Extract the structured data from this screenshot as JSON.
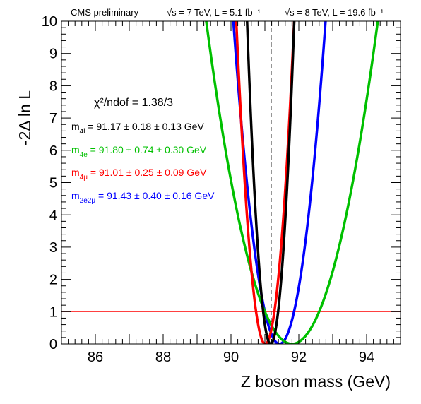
{
  "header": {
    "left": "CMS preliminary",
    "run1": "√s = 7 TeV, L = 5.1 fb⁻¹",
    "run2": "√s = 8 TeV, L = 19.6 fb⁻¹"
  },
  "chi2_label": "χ²/ndof = 1.38/3",
  "legend": [
    {
      "key": "4l",
      "label": "m4l = 91.17 ± 0.18 ± 0.13 GeV",
      "sym": "m",
      "sub": "4l",
      "rest": " = 91.17 ± 0.18 ± 0.13 GeV",
      "color": "#000000"
    },
    {
      "key": "4e",
      "label": "m4e = 91.80 ± 0.74 ± 0.30 GeV",
      "sym": "m",
      "sub": "4e",
      "rest": " = 91.80 ± 0.74 ± 0.30 GeV",
      "color": "#00c000"
    },
    {
      "key": "4mu",
      "label": "m4μ = 91.01 ± 0.25 ± 0.09 GeV",
      "sym": "m",
      "sub": "4μ",
      "rest": " = 91.01 ± 0.25 ± 0.09 GeV",
      "color": "#ff0000"
    },
    {
      "key": "2e2mu",
      "label": "m2e2μ = 91.43 ± 0.40 ± 0.16 GeV",
      "sym": "m",
      "sub": "2e2μ",
      "rest": " = 91.43 ± 0.40 ± 0.16 GeV",
      "color": "#0000ff"
    }
  ],
  "chart_data": {
    "type": "line",
    "xlabel": "Z boson mass (GeV)",
    "ylabel": "-2Δ ln L",
    "xlim": [
      85,
      95
    ],
    "ylim": [
      0,
      10
    ],
    "xticks": [
      86,
      88,
      90,
      92,
      94
    ],
    "yticks": [
      0,
      1,
      2,
      3,
      4,
      5,
      6,
      7,
      8,
      9,
      10
    ],
    "reference_lines": [
      {
        "orientation": "horizontal",
        "y": 1.0,
        "color": "#ff0000"
      },
      {
        "orientation": "horizontal",
        "y": 3.84,
        "color": "#aaaaaa"
      },
      {
        "orientation": "vertical",
        "x": 91.19,
        "style": "dashed",
        "color": "#555555"
      }
    ],
    "series": [
      {
        "name": "m2e2μ",
        "color": "#0000ff",
        "minimum": 91.43,
        "sigma": 0.43,
        "ymin": 0.0
      },
      {
        "name": "m4e",
        "color": "#00c000",
        "minimum": 91.8,
        "sigma": 0.8,
        "ymin": 0.0
      },
      {
        "name": "m4μ",
        "color": "#ff0000",
        "minimum": 91.01,
        "sigma": 0.27,
        "ymin": 0.0
      },
      {
        "name": "m4l",
        "color": "#000000",
        "minimum": 91.17,
        "sigma": 0.22,
        "ymin": 0.0
      }
    ]
  }
}
